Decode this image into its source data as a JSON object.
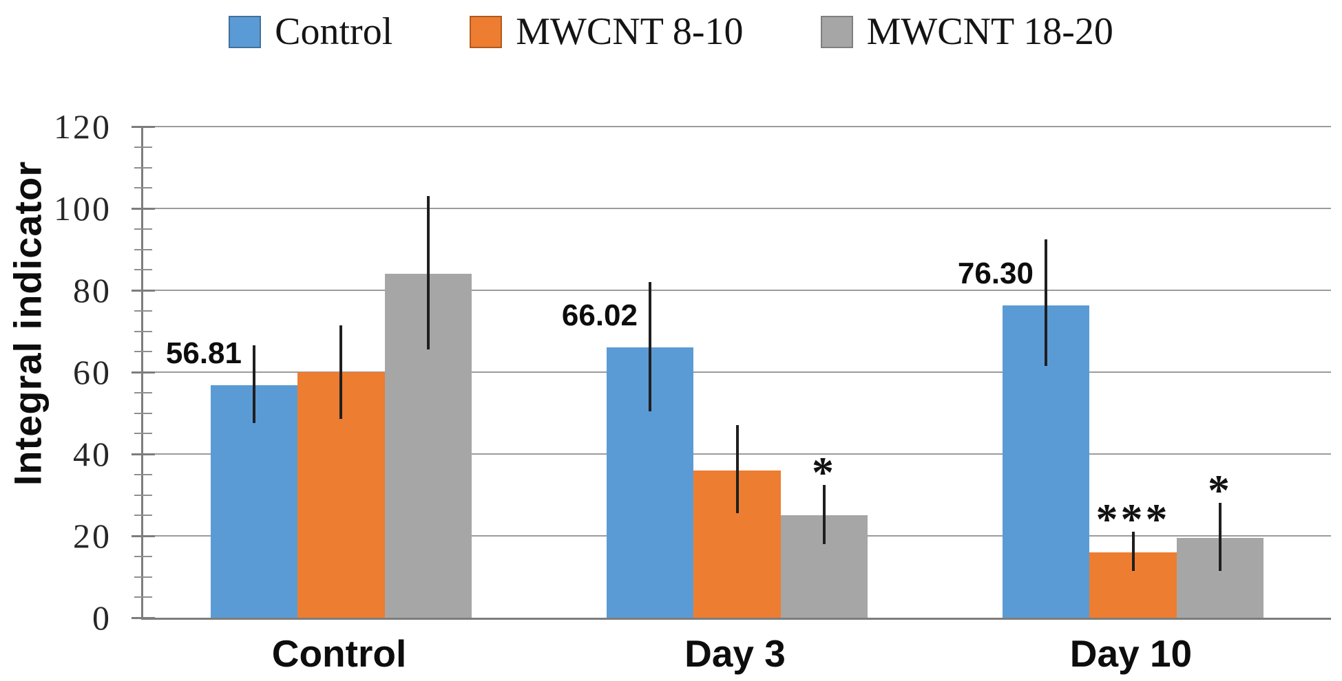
{
  "chart_data": {
    "type": "bar",
    "title": "",
    "ylabel": "Integral indicator",
    "xlabel": "",
    "ylim": [
      0,
      120
    ],
    "yticks": [
      0,
      20,
      40,
      60,
      80,
      100,
      120
    ],
    "yminor_step": 5,
    "grid": "horizontal-major",
    "legend_position": "top",
    "categories": [
      "Control",
      "Day 3",
      "Day 10"
    ],
    "series": [
      {
        "name": "Control",
        "color": "#5B9BD5",
        "border_color": "#41719C",
        "values": [
          56.81,
          66.02,
          76.3
        ],
        "data_labels": [
          "56.81",
          "66.02",
          "76.30"
        ],
        "error_low": [
          47.5,
          50.5,
          61.5
        ],
        "error_high": [
          66.5,
          82,
          92.5
        ],
        "annotations": [
          "",
          "",
          ""
        ]
      },
      {
        "name": "MWCNT 8-10",
        "color": "#ED7D31",
        "border_color": "#AE5A21",
        "values": [
          60,
          36,
          16
        ],
        "data_labels": [
          "",
          "",
          ""
        ],
        "error_low": [
          48.5,
          25.5,
          11.5
        ],
        "error_high": [
          71.5,
          47,
          21
        ],
        "annotations": [
          "",
          "",
          "***"
        ]
      },
      {
        "name": "MWCNT 18-20",
        "color": "#A6A6A6",
        "border_color": "#7F7F7F",
        "values": [
          84,
          25,
          19.5
        ],
        "data_labels": [
          "",
          "",
          ""
        ],
        "error_low": [
          65.5,
          18,
          11.5
        ],
        "error_high": [
          103,
          32.5,
          28
        ],
        "annotations": [
          "",
          "*",
          "*"
        ]
      }
    ]
  }
}
